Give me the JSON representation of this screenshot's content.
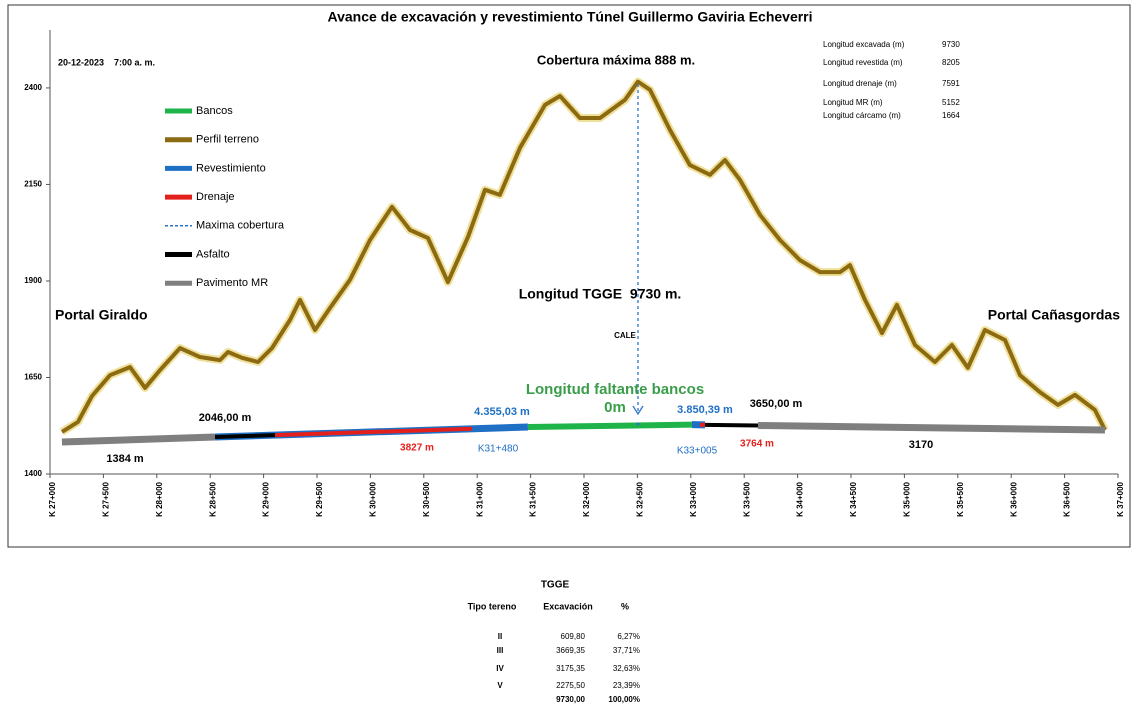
{
  "chart_data": {
    "type": "tunnel-profile",
    "title": "Avance de excavación y revestimiento Túnel Guillermo Gaviria Echeverri",
    "xlim": [
      27000,
      37000
    ],
    "xticks": [
      {
        "value": 27000,
        "label": "K 27+000"
      },
      {
        "value": 27500,
        "label": "K 27+500"
      },
      {
        "value": 28000,
        "label": "K 28+000"
      },
      {
        "value": 28500,
        "label": "K 28+500"
      },
      {
        "value": 29000,
        "label": "K 29+000"
      },
      {
        "value": 29500,
        "label": "K 29+500"
      },
      {
        "value": 30000,
        "label": "K 30+000"
      },
      {
        "value": 30500,
        "label": "K 30+500"
      },
      {
        "value": 31000,
        "label": "K 31+000"
      },
      {
        "value": 31500,
        "label": "K 31+500"
      },
      {
        "value": 32000,
        "label": "K 32+000"
      },
      {
        "value": 32500,
        "label": "K 32+500"
      },
      {
        "value": 33000,
        "label": "K 33+000"
      },
      {
        "value": 33500,
        "label": "K 33+500"
      },
      {
        "value": 34000,
        "label": "K 34+000"
      },
      {
        "value": 34500,
        "label": "K 34+500"
      },
      {
        "value": 35000,
        "label": "K 35+000"
      },
      {
        "value": 35500,
        "label": "K 35+500"
      },
      {
        "value": 36000,
        "label": "K 36+000"
      },
      {
        "value": 36500,
        "label": "K 36+500"
      },
      {
        "value": 37000,
        "label": "K 37+000"
      }
    ],
    "ylim": [
      1400,
      2550
    ],
    "yticks": [
      1400,
      1650,
      1900,
      2150,
      2400
    ],
    "terrain": {
      "x": [
        27112,
        27262,
        27393,
        27562,
        27749,
        27890,
        28030,
        28217,
        28404,
        28592,
        28667,
        28798,
        28948,
        29079,
        29247,
        29341,
        29481,
        29622,
        29809,
        29996,
        30202,
        30371,
        30539,
        30726,
        30914,
        31073,
        31213,
        31401,
        31635,
        31775,
        31962,
        32150,
        32384,
        32505,
        32618,
        32805,
        32992,
        33180,
        33320,
        33460,
        33648,
        33835,
        34022,
        34210,
        34397,
        34490,
        34631,
        34790,
        34930,
        35099,
        35286,
        35445,
        35595,
        35754,
        35942,
        36082,
        36269,
        36438,
        36597,
        36784,
        36878
      ],
      "values": [
        1509,
        1535,
        1602,
        1656,
        1677,
        1623,
        1669,
        1726,
        1703,
        1695,
        1716,
        1701,
        1690,
        1726,
        1799,
        1851,
        1773,
        1830,
        1903,
        2006,
        2092,
        2032,
        2011,
        1897,
        2014,
        2136,
        2123,
        2245,
        2356,
        2379,
        2322,
        2322,
        2369,
        2416,
        2395,
        2291,
        2200,
        2175,
        2213,
        2162,
        2071,
        2006,
        1954,
        1923,
        1923,
        1941,
        1851,
        1765,
        1838,
        1734,
        1690,
        1734,
        1675,
        1773,
        1747,
        1656,
        1612,
        1579,
        1605,
        1566,
        1514
      ]
    },
    "tunnel": {
      "x": [
        27112,
        32400,
        36878
      ],
      "values": [
        1483,
        1530,
        1514
      ]
    },
    "series": [
      {
        "name": "Bancos",
        "color": "#1fb44a",
        "segments": [
          {
            "from": 31475,
            "to": 33011
          }
        ]
      },
      {
        "name": "Perfil terreno",
        "color": "#8c6a12"
      },
      {
        "name": "Revestimiento",
        "color": "#1f6fc5",
        "segments": [
          {
            "from": 28545,
            "to": 31475
          },
          {
            "from": 33011,
            "to": 33133
          }
        ]
      },
      {
        "name": "Drenaje",
        "color": "#e3201b",
        "segments": [
          {
            "from": 29107,
            "to": 30951
          },
          {
            "from": 33086,
            "to": 33133
          }
        ]
      },
      {
        "name": "Maxima cobertura",
        "color": "#2e75c8",
        "x": 32505
      },
      {
        "name": "Asfalto",
        "color": "#000000",
        "segments": [
          {
            "from": 28545,
            "to": 29107
          },
          {
            "from": 33133,
            "to": 33629
          }
        ]
      },
      {
        "name": "Pavimento MR",
        "color": "#7f7f7f",
        "segments": [
          {
            "from": 27112,
            "to": 28545
          },
          {
            "from": 33629,
            "to": 36878
          }
        ]
      }
    ],
    "annotations": [
      "20-12-2023    7:00 a. m.",
      "Cobertura máxima 888 m.",
      "Portal Giraldo",
      "Portal Cañasgordas",
      "Longitud TGGE  9730 m.",
      "CALE",
      "Longitud faltante bancos",
      "0m",
      "2046,00 m",
      "1384 m",
      "3827 m",
      "4.355,03 m",
      "K31+480",
      "3.850,39 m",
      "K33+005",
      "3650,00 m",
      "3764 m",
      "3170"
    ]
  },
  "stats": [
    {
      "name": "Longitud excavada (m)",
      "value": "9730"
    },
    {
      "name": "Longitud revestida (m)",
      "value": "8205"
    },
    {
      "name": "Longitud drenaje (m)",
      "value": "7591"
    },
    {
      "name": "Longitud MR (m)",
      "value": "5152"
    },
    {
      "name": "Longitud cárcamo (m)",
      "value": "1664"
    }
  ],
  "table": {
    "title": "TGGE",
    "headers": [
      "Tipo tereno",
      "Excavación",
      "%"
    ],
    "rows": [
      [
        "II",
        "609,80",
        "6,27%"
      ],
      [
        "III",
        "3669,35",
        "37,71%"
      ],
      [
        "IV",
        "3175,35",
        "32,63%"
      ],
      [
        "V",
        "2275,50",
        "23,39%"
      ]
    ],
    "total": [
      "9730,00",
      "100,00%"
    ]
  }
}
